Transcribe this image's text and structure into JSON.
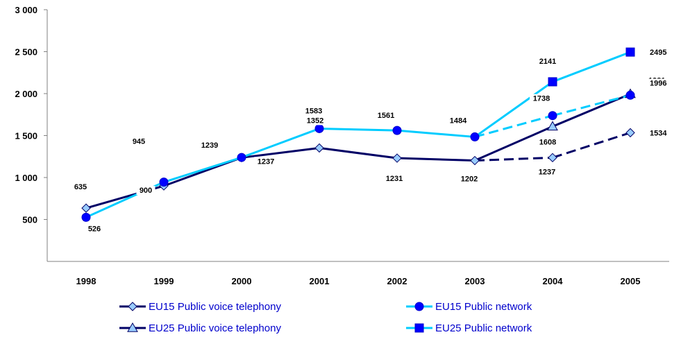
{
  "chart_data": {
    "type": "line",
    "title": "",
    "xlabel": "",
    "ylabel": "",
    "categories": [
      "1998",
      "1999",
      "2000",
      "2001",
      "2002",
      "2003",
      "2004",
      "2005"
    ],
    "ylim": [
      0,
      3000
    ],
    "y_ticks": [
      "500",
      "1 000",
      "1 500",
      "2 000",
      "2 500",
      "3 000"
    ],
    "grid": false,
    "legend_position": "bottom",
    "series": [
      {
        "name": "EU15 Public voice telephony",
        "marker": "diamond",
        "color": "#000066",
        "marker_fill": "#99ccff",
        "values": [
          635,
          900,
          1237,
          1352,
          1231,
          1202,
          1237,
          1534
        ],
        "labels": [
          "635",
          "900",
          "1237",
          "1352",
          "1231",
          "1202",
          "1237",
          "1534"
        ],
        "dashed_from": "2003"
      },
      {
        "name": "EU15 Public network",
        "marker": "circle",
        "color": "#00ccff",
        "marker_fill": "#0000ff",
        "values": [
          526,
          945,
          1239,
          1583,
          1561,
          1484,
          1738,
          1981
        ],
        "labels": [
          "526",
          "945",
          "1239",
          "1583",
          "1561",
          "1484",
          "1738",
          "1981"
        ],
        "dashed_from": "2003"
      },
      {
        "name": "EU25 Public voice telephony",
        "marker": "triangle",
        "color": "#000066",
        "marker_fill": "#99ccff",
        "values": [
          null,
          null,
          null,
          null,
          null,
          1202,
          1608,
          1996
        ],
        "labels": [
          "",
          "",
          "",
          "",
          "",
          "",
          "1608",
          "1996"
        ]
      },
      {
        "name": "EU25 Public network",
        "marker": "square",
        "color": "#00ccff",
        "marker_fill": "#0000ff",
        "values": [
          null,
          null,
          null,
          null,
          null,
          1484,
          2141,
          2495
        ],
        "labels": [
          "",
          "",
          "",
          "",
          "",
          "",
          "2141",
          "2495"
        ]
      }
    ]
  }
}
